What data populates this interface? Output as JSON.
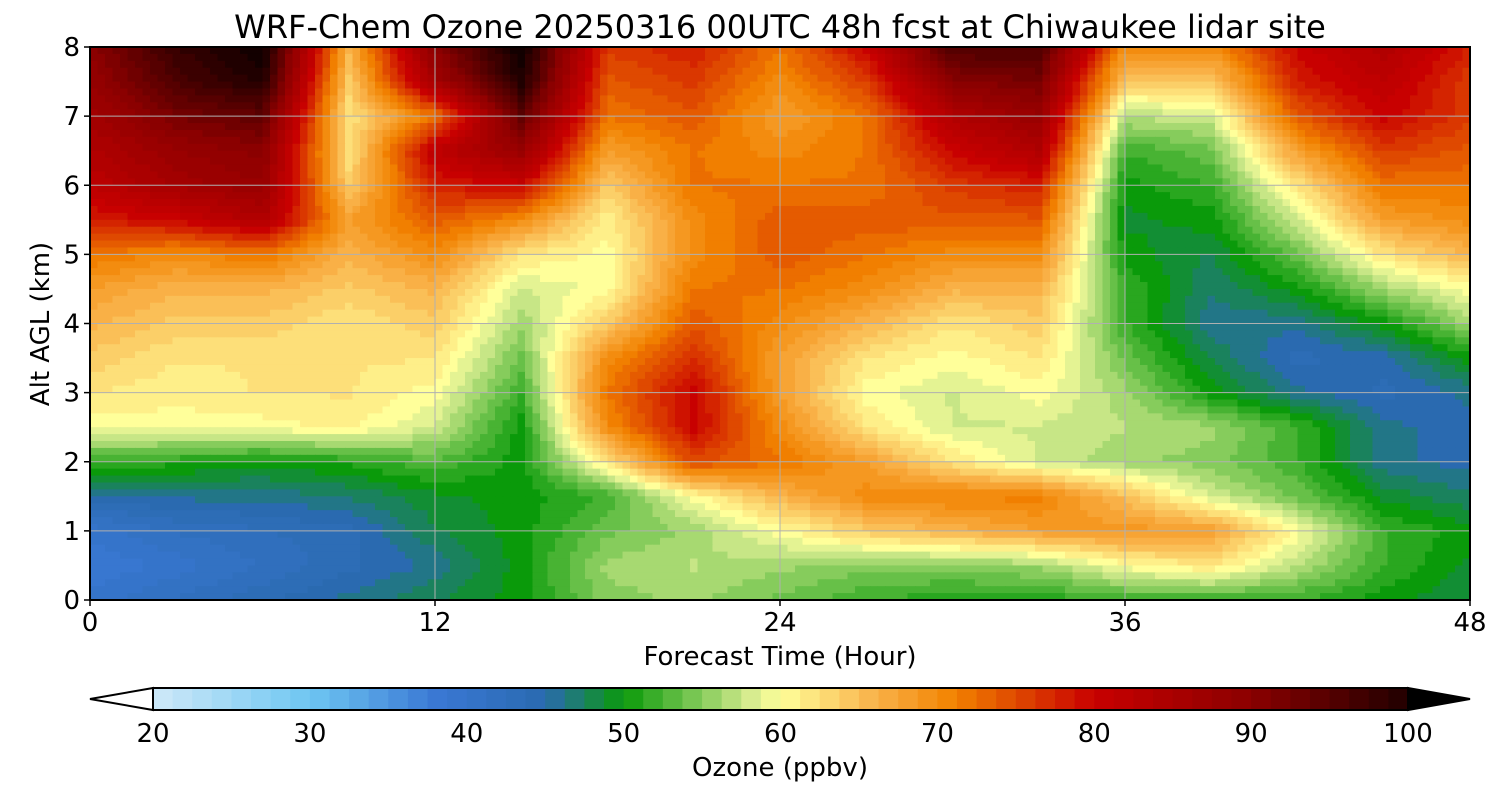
{
  "chart_data": {
    "type": "heatmap",
    "title": "WRF-Chem Ozone  20250316 00UTC 48h fcst at Chiwaukee lidar site",
    "xlabel": "Forecast Time (Hour)",
    "ylabel": "Alt AGL (km)",
    "xlim": [
      0,
      48
    ],
    "ylim": [
      0,
      8
    ],
    "xticks": [
      "0",
      "12",
      "24",
      "36",
      "48"
    ],
    "yticks": [
      "0",
      "1",
      "2",
      "3",
      "4",
      "5",
      "6",
      "7",
      "8"
    ],
    "grid": true,
    "colorbar": {
      "label": "Ozone  (ppbv)",
      "range": [
        20,
        100
      ],
      "ticks": [
        "20",
        "30",
        "40",
        "50",
        "60",
        "70",
        "80",
        "90",
        "100"
      ],
      "extend": "both",
      "colors": [
        "#ffffff",
        "#cfe9f8",
        "#6ec6f2",
        "#3a78d4",
        "#2a6ab0",
        "#0a9a0a",
        "#86cc5c",
        "#d4eb8e",
        "#ffff9a",
        "#f9b24a",
        "#f28300",
        "#c80000",
        "#8b0000",
        "#000000"
      ]
    },
    "x": [
      0,
      3,
      6,
      9,
      12,
      15,
      18,
      21,
      24,
      27,
      30,
      33,
      36,
      39,
      42,
      45,
      48
    ],
    "y": [
      0,
      0.5,
      1,
      1.5,
      2,
      2.5,
      3,
      3.5,
      4,
      4.5,
      5,
      5.5,
      6,
      6.5,
      7,
      7.5,
      8
    ],
    "values": [
      [
        40,
        42,
        44,
        46,
        48,
        50,
        55,
        56,
        54,
        52,
        51,
        51,
        52,
        52,
        52,
        50,
        48
      ],
      [
        38,
        40,
        42,
        44,
        46,
        50,
        56,
        57,
        56,
        55,
        55,
        56,
        60,
        62,
        57,
        52,
        49
      ],
      [
        40,
        42,
        43,
        44,
        48,
        50,
        54,
        56,
        60,
        64,
        66,
        68,
        69,
        68,
        60,
        52,
        50
      ],
      [
        45,
        46,
        46,
        47,
        49,
        50,
        52,
        60,
        66,
        70,
        71,
        71,
        65,
        58,
        54,
        49,
        47
      ],
      [
        52,
        51,
        50,
        51,
        53,
        50,
        62,
        75,
        72,
        68,
        62,
        58,
        56,
        55,
        52,
        46,
        45
      ],
      [
        60,
        60,
        60,
        61,
        58,
        50,
        70,
        80,
        70,
        62,
        58,
        58,
        57,
        56,
        52,
        46,
        45
      ],
      [
        62,
        61,
        62,
        62,
        60,
        52,
        72,
        80,
        68,
        60,
        58,
        60,
        56,
        50,
        46,
        44,
        46
      ],
      [
        64,
        62,
        62,
        62,
        62,
        54,
        70,
        77,
        68,
        62,
        60,
        62,
        54,
        48,
        44,
        45,
        50
      ],
      [
        66,
        64,
        64,
        62,
        64,
        56,
        64,
        74,
        70,
        66,
        62,
        64,
        52,
        46,
        46,
        50,
        56
      ],
      [
        68,
        66,
        66,
        64,
        66,
        58,
        60,
        72,
        72,
        70,
        66,
        66,
        52,
        47,
        50,
        56,
        60
      ],
      [
        72,
        70,
        72,
        66,
        70,
        62,
        60,
        70,
        74,
        72,
        70,
        70,
        50,
        48,
        54,
        62,
        66
      ],
      [
        78,
        80,
        84,
        68,
        74,
        70,
        61,
        70,
        74,
        74,
        74,
        74,
        49,
        50,
        58,
        68,
        70
      ],
      [
        82,
        86,
        88,
        64,
        78,
        80,
        64,
        72,
        72,
        72,
        76,
        78,
        50,
        52,
        62,
        72,
        72
      ],
      [
        84,
        88,
        90,
        62,
        82,
        88,
        68,
        72,
        70,
        72,
        80,
        84,
        52,
        54,
        68,
        76,
        74
      ],
      [
        86,
        92,
        94,
        62,
        72,
        94,
        72,
        74,
        68,
        72,
        84,
        88,
        57,
        58,
        74,
        80,
        76
      ],
      [
        88,
        96,
        100,
        64,
        86,
        100,
        74,
        76,
        70,
        76,
        90,
        92,
        64,
        64,
        78,
        82,
        76
      ],
      [
        90,
        98,
        102,
        66,
        90,
        102,
        76,
        78,
        72,
        80,
        96,
        96,
        70,
        70,
        80,
        84,
        78
      ]
    ]
  }
}
